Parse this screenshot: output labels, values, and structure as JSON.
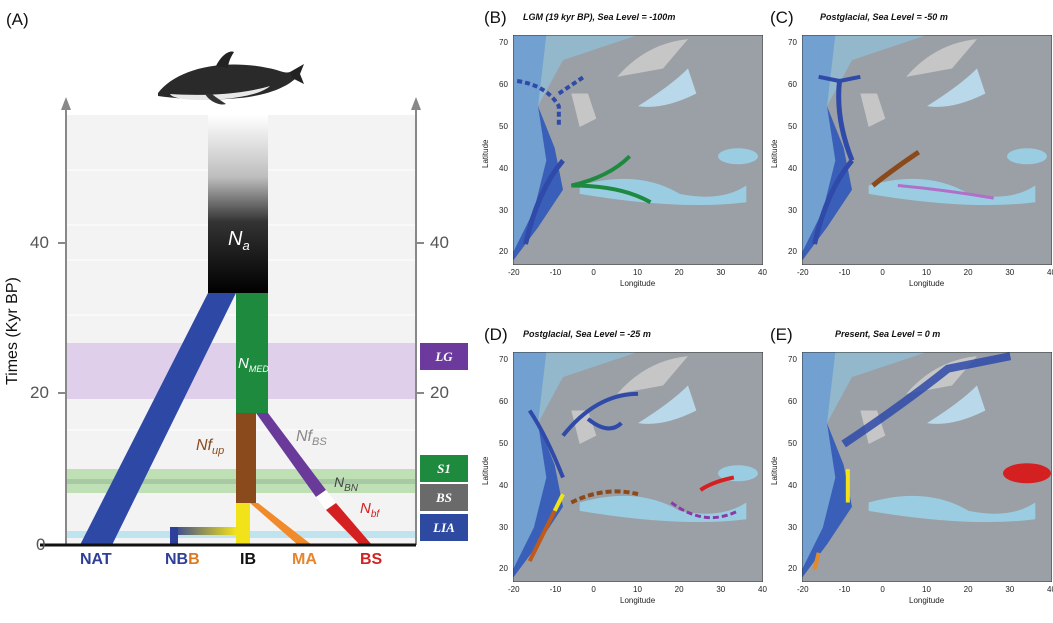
{
  "panel_a": {
    "label": "(A)",
    "y_axis_title": "Times (Kyr BP)",
    "y_ticks": [
      "40",
      "20",
      "0"
    ],
    "right_ticks": [
      "40",
      "20"
    ],
    "pop_labels": {
      "na": "N",
      "na_sub": "a",
      "nmed": "N",
      "nmed_sub": "MED",
      "nfup": "Nf",
      "nfup_sub": "up",
      "nfbs": "Nf",
      "nfbs_sub": "BS",
      "nbn": "N",
      "nbn_sub": "BN",
      "nbf": "N",
      "nbf_sub": "bf"
    },
    "periods": [
      {
        "label": "LG",
        "color": "#6c3a9c"
      },
      {
        "label": "S1",
        "color": "#1d8a3e"
      },
      {
        "label": "BS",
        "color": "#6a6a6a"
      },
      {
        "label": "LIA",
        "color": "#2e4aa0"
      }
    ],
    "populations": [
      {
        "label": "NAT",
        "color": "#2e3f9a"
      },
      {
        "label_a": "NB",
        "label_b": "B",
        "color_a": "#2e3f9a",
        "color_b": "#e07820"
      },
      {
        "label": "IB",
        "color": "#111111"
      },
      {
        "label": "MA",
        "color": "#e8842a"
      },
      {
        "label": "BS",
        "color": "#d42020"
      }
    ]
  },
  "maps": [
    {
      "label": "(B)",
      "title": "LGM (19 kyr BP), Sea Level = -100m"
    },
    {
      "label": "(C)",
      "title": "Postglacial, Sea Level =  -50 m"
    },
    {
      "label": "(D)",
      "title": "Postglacial, Sea Level =  -25 m"
    },
    {
      "label": "(E)",
      "title": "Present, Sea Level =  0 m"
    }
  ],
  "map_axes": {
    "xlabel": "Longitude",
    "ylabel": "Latitude",
    "xticks": [
      "-20",
      "-10",
      "0",
      "10",
      "20",
      "30",
      "40"
    ],
    "yticks": [
      "70",
      "60",
      "50",
      "40",
      "30",
      "20"
    ]
  },
  "colors": {
    "nat_blue": "#2f4aa8",
    "med_green": "#1e8a40",
    "ib_brown": "#8b4a1c",
    "ib_yellow": "#f2e21a",
    "bs_red": "#d42020",
    "bs_purple": "#6a3a9a",
    "lg_band": "#d8c2e6",
    "s1_band": "#bfe0b4",
    "lia_band": "#bfe4ef"
  }
}
